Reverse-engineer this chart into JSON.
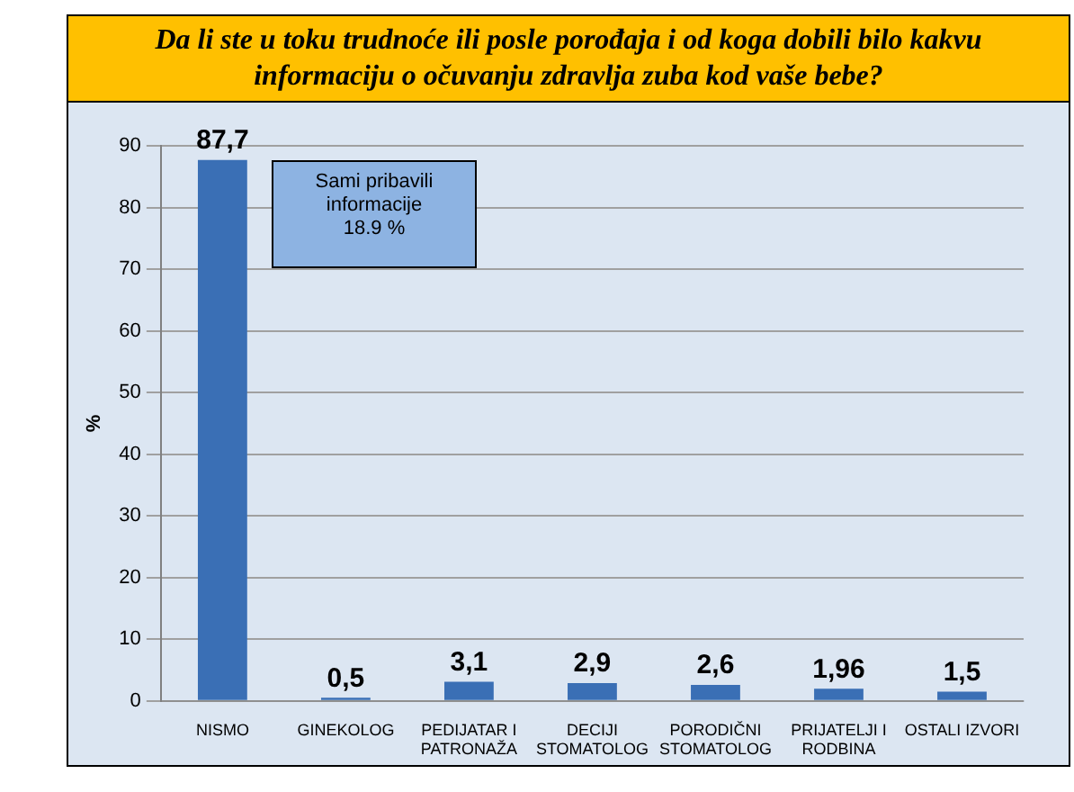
{
  "chart_data": {
    "type": "bar",
    "title": "Da li ste u toku trudnoće ili posle porođaja i od koga dobili bilo kakvu informaciju o očuvanju zdravlja zuba kod  vaše bebe?",
    "ylabel": "%",
    "categories": [
      "NISMO",
      "GINEKOLOG",
      "PEDIJATAR I\nPATRONAŽA",
      "DECIJI\nSTOMATOLOG",
      "PORODIČNI\nSTOMATOLOG",
      "PRIJATELJI I\nRODBINA",
      "OSTALI IZVORI"
    ],
    "values": [
      87.7,
      0.5,
      3.1,
      2.9,
      2.6,
      1.96,
      1.5
    ],
    "value_labels": [
      "87,7",
      "0,5",
      "3,1",
      "2,9",
      "2,6",
      "1,96",
      "1,5"
    ],
    "color": "#3a6fb5",
    "ylim": [
      0,
      90
    ],
    "yticks": [
      0,
      10,
      20,
      30,
      40,
      50,
      60,
      70,
      80,
      90
    ],
    "grid": "y",
    "annotations": [
      "Sami pribavili\ninformacije\n18.9 %"
    ]
  }
}
